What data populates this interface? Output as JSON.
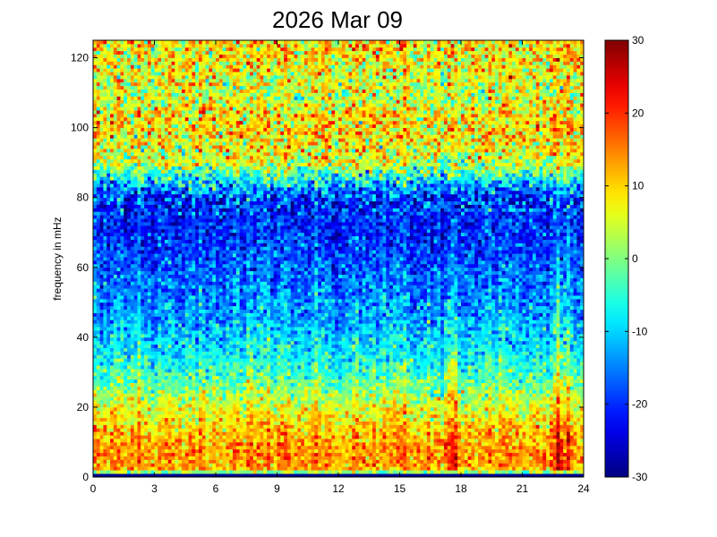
{
  "chart_data": {
    "type": "heatmap",
    "title": "2026 Mar 09",
    "xlabel": "",
    "ylabel": "frequency in mHz",
    "xlim": [
      0,
      24
    ],
    "ylim": [
      0,
      125
    ],
    "xticks": [
      0,
      3,
      6,
      9,
      12,
      15,
      18,
      21,
      24
    ],
    "yticks": [
      0,
      20,
      40,
      60,
      80,
      100,
      120
    ],
    "colorbar": {
      "colormap": "jet",
      "clim": [
        -30,
        30
      ],
      "ticks": [
        -30,
        -20,
        -10,
        0,
        10,
        20,
        30
      ]
    },
    "grid": false,
    "time_bins": 144,
    "freq_bins": 125,
    "spectral_profile": {
      "frequency_mHz": [
        0,
        2,
        5,
        10,
        15,
        20,
        25,
        30,
        40,
        50,
        60,
        70,
        80,
        90,
        100,
        110,
        125
      ],
      "typical_level": [
        -29,
        12,
        14,
        13,
        10,
        6,
        1,
        -4,
        -10,
        -14,
        -17,
        -20,
        -20,
        5,
        10,
        5,
        10
      ]
    },
    "bursts": [
      {
        "time_h": 2.2,
        "level": 10
      },
      {
        "time_h": 7.6,
        "level": 9
      },
      {
        "time_h": 8.6,
        "level": 8
      },
      {
        "time_h": 9.3,
        "level": 10
      },
      {
        "time_h": 10.1,
        "level": 6
      },
      {
        "time_h": 14.6,
        "level": 7
      },
      {
        "time_h": 17.4,
        "level": 18
      },
      {
        "time_h": 17.7,
        "level": 22
      },
      {
        "time_h": 19.3,
        "level": 5
      },
      {
        "time_h": 20.0,
        "level": 6
      },
      {
        "time_h": 22.8,
        "level": 22
      },
      {
        "time_h": 23.2,
        "level": 12
      }
    ]
  }
}
